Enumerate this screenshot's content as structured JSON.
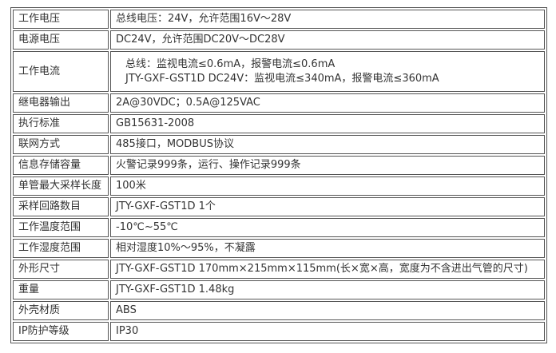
{
  "rows": [
    {
      "label": "工作电压",
      "value": [
        "总线电压：24V，允许范围16V～28V"
      ]
    },
    {
      "label": "电源电压",
      "value": [
        "DC24V，允许范围DC20V～DC28V"
      ]
    },
    {
      "label": "工作电流",
      "value": [
        "总线：监视电流≤0.6mA，报警电流≤0.6mA",
        "JTY-GXF-GST1D DC24V：监视电流≤340mA，报警电流≤360mA"
      ]
    },
    {
      "label": "继电器输出",
      "value": [
        "2A@30VDC；0.5A@125VAC"
      ]
    },
    {
      "label": "执行标准",
      "value": [
        "GB15631-2008"
      ]
    },
    {
      "label": "联网方式",
      "value": [
        "485接口，MODBUS协议"
      ]
    },
    {
      "label": "信息存储容量",
      "value": [
        "火警记录999条，运行、操作记录999条"
      ]
    },
    {
      "label": "单管最大采样长度",
      "value": [
        "100米"
      ]
    },
    {
      "label": "采样回路数目",
      "value": [
        "JTY-GXF-GST1D 1个"
      ]
    },
    {
      "label": "工作温度范围",
      "value": [
        "-10℃~55℃"
      ]
    },
    {
      "label": "工作湿度范围",
      "value": [
        "相对湿度10%～95%，不凝露"
      ]
    },
    {
      "label": "外形尺寸",
      "value": [
        "JTY-GXF-GST1D 170mm×215mm×115mm(长×宽×高，宽度为不含进出气管的尺寸)"
      ]
    },
    {
      "label": "重量",
      "value": [
        "JTY-GXF-GST1D 1.48kg"
      ]
    },
    {
      "label": "外壳材质",
      "value": [
        "ABS"
      ]
    },
    {
      "label": "IP防护等级",
      "value": [
        "IP30"
      ]
    }
  ]
}
